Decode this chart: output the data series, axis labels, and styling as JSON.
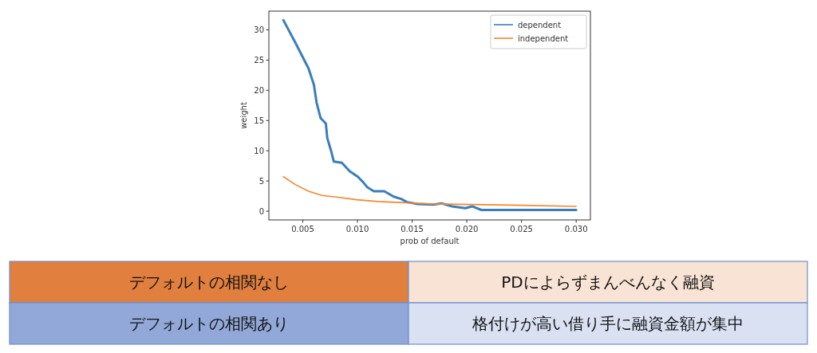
{
  "chart_data": [
    {
      "type": "line",
      "xlabel": "prob of default",
      "ylabel": "weight",
      "xlim": [
        0.0019,
        0.0313
      ],
      "xticks": [
        {
          "value": 0.005,
          "label": "0.005"
        },
        {
          "value": 0.01,
          "label": "0.010"
        },
        {
          "value": 0.015,
          "label": "0.015"
        },
        {
          "value": 0.02,
          "label": "0.020"
        },
        {
          "value": 0.025,
          "label": "0.025"
        },
        {
          "value": 0.03,
          "label": "0.030"
        }
      ],
      "ylim": [
        -1.45,
        33.1
      ],
      "yticks": [
        0,
        5,
        10,
        15,
        20,
        25,
        30
      ],
      "legend": "top right",
      "grid": false,
      "series": [
        {
          "name": "dependent",
          "color": "#3a7dbf",
          "x": [
            0.00323,
            0.00432,
            0.00553,
            0.00602,
            0.00626,
            0.00663,
            0.00711,
            0.00724,
            0.0076,
            0.00784,
            0.00857,
            0.0093,
            0.01003,
            0.01052,
            0.01088,
            0.01149,
            0.01246,
            0.01331,
            0.01404,
            0.01452,
            0.0155,
            0.01695,
            0.01768,
            0.01865,
            0.01987,
            0.02048,
            0.02133,
            0.02279,
            0.02473,
            0.02643,
            0.02813,
            0.03
          ],
          "values": [
            31.6,
            27.9,
            23.6,
            20.9,
            18.0,
            15.4,
            14.5,
            12.1,
            9.9,
            8.2,
            8.0,
            6.6,
            5.7,
            4.8,
            4.0,
            3.3,
            3.3,
            2.4,
            2.0,
            1.5,
            1.2,
            1.1,
            1.3,
            0.8,
            0.5,
            0.8,
            0.2,
            0.2,
            0.2,
            0.2,
            0.2,
            0.2
          ]
        },
        {
          "name": "independent",
          "color": "#f5862a",
          "x": [
            0.00323,
            0.00432,
            0.00553,
            0.00675,
            0.00821,
            0.00991,
            0.01185,
            0.01428,
            0.01671,
            0.02036,
            0.024,
            0.03
          ],
          "values": [
            5.7,
            4.4,
            3.3,
            2.6,
            2.3,
            1.9,
            1.6,
            1.4,
            1.2,
            1.1,
            1.0,
            0.8
          ]
        }
      ]
    },
    {
      "type": "other",
      "annotations": [
        "デフォルトの相関なし",
        "PDによらずまんべんなく融資",
        "デフォルトの相関あり",
        "格付けが高い借り手に融資金額が集中"
      ],
      "colors": [
        "#e07f3e",
        "#f8e3d5",
        "#91a8d8",
        "#d9e1f2"
      ]
    }
  ]
}
